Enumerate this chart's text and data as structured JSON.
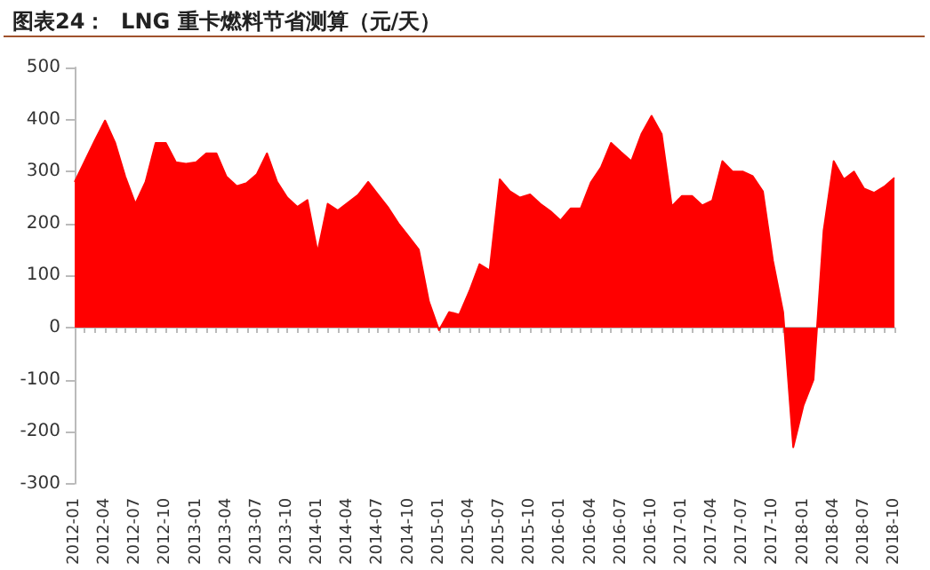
{
  "chart_data": {
    "type": "area",
    "title": "图表24：  LNG 重卡燃料节省测算（元/天）",
    "categories": [
      "2012-01",
      null,
      null,
      "2012-04",
      null,
      null,
      "2012-07",
      null,
      null,
      "2012-10",
      null,
      null,
      "2013-01",
      null,
      null,
      "2013-04",
      null,
      null,
      "2013-07",
      null,
      null,
      "2013-10",
      null,
      null,
      "2014-01",
      null,
      null,
      "2014-04",
      null,
      null,
      "2014-07",
      null,
      null,
      "2014-10",
      null,
      null,
      "2015-01",
      null,
      null,
      "2015-04",
      null,
      null,
      "2015-07",
      null,
      null,
      "2015-10",
      null,
      null,
      "2016-01",
      null,
      null,
      "2016-04",
      null,
      null,
      "2016-07",
      null,
      null,
      "2016-10",
      null,
      null,
      "2017-01",
      null,
      null,
      "2017-04",
      null,
      null,
      "2017-07",
      null,
      null,
      "2017-10",
      null,
      null,
      "2018-01",
      null,
      null,
      "2018-04",
      null,
      null,
      "2018-07",
      null,
      null,
      "2018-10"
    ],
    "series": [
      {
        "color": "#ff0000",
        "values": [
          280,
          320,
          360,
          398,
          355,
          290,
          238,
          280,
          355,
          355,
          318,
          315,
          318,
          335,
          335,
          290,
          272,
          278,
          295,
          335,
          280,
          250,
          232,
          245,
          145,
          238,
          225,
          240,
          255,
          280,
          255,
          230,
          200,
          175,
          150,
          50,
          -5,
          30,
          25,
          70,
          122,
          110,
          285,
          262,
          250,
          256,
          238,
          224,
          206,
          229,
          229,
          279,
          308,
          355,
          337,
          320,
          372,
          407,
          372,
          233,
          253,
          253,
          235,
          244,
          320,
          300,
          300,
          291,
          262,
          128,
          30,
          -230,
          -150,
          -100,
          186,
          320,
          285,
          300,
          267,
          259,
          271,
          288
        ]
      }
    ],
    "ylim": [
      -300,
      500
    ],
    "yticks": [
      -300,
      -200,
      -100,
      0,
      100,
      200,
      300,
      400,
      500
    ],
    "marker": "none"
  }
}
